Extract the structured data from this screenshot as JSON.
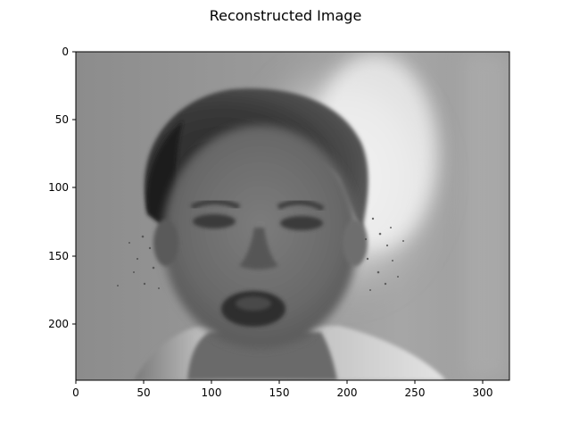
{
  "figure": {
    "title": "Reconstructed Image",
    "x_ticks": [
      "0",
      "50",
      "100",
      "150",
      "200",
      "250",
      "300"
    ],
    "y_ticks": [
      "0",
      "50",
      "100",
      "150",
      "200"
    ],
    "image_description": "grayscale reconstructed face of a person with dark hair and open mouth",
    "colormap": "gray"
  }
}
